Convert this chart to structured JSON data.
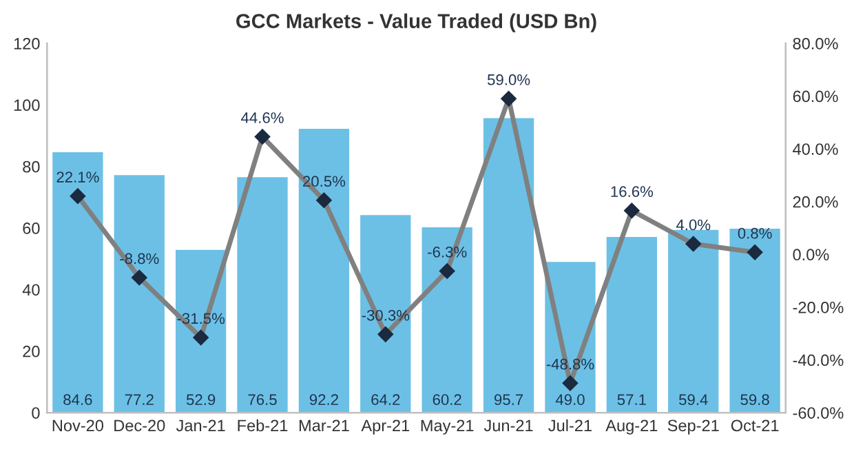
{
  "chart_data": {
    "type": "bar",
    "title": "GCC Markets - Value Traded (USD Bn)",
    "categories": [
      "Nov-20",
      "Dec-20",
      "Jan-21",
      "Feb-21",
      "Mar-21",
      "Apr-21",
      "May-21",
      "Jun-21",
      "Jul-21",
      "Aug-21",
      "Sep-21",
      "Oct-21"
    ],
    "series": [
      {
        "color": "#6cc0e5",
        "values": [
          84.6,
          77.2,
          52.9,
          76.5,
          92.2,
          64.2,
          60.2,
          95.7,
          49.0,
          57.1,
          59.4,
          59.8
        ],
        "value_labels": [
          "84.6",
          "77.2",
          "52.9",
          "76.5",
          "92.2",
          "64.2",
          "60.2",
          "95.7",
          "49.0",
          "57.1",
          "59.4",
          "59.8"
        ]
      },
      {
        "type": "line",
        "axis": "y2",
        "color": "#808080",
        "marker": "diamond",
        "values": [
          22.1,
          -8.8,
          -31.5,
          44.6,
          20.5,
          -30.3,
          -6.3,
          59.0,
          -48.8,
          16.6,
          4.0,
          0.8
        ],
        "value_labels": [
          "22.1%",
          "-8.8%",
          "-31.5%",
          "44.6%",
          "20.5%",
          "-30.3%",
          "-6.3%",
          "59.0%",
          "-48.8%",
          "16.6%",
          "4.0%",
          "0.8%"
        ]
      }
    ],
    "ylim": [
      0,
      120
    ],
    "yticks": [
      0,
      20,
      40,
      60,
      80,
      100,
      120
    ],
    "y2lim": [
      -60,
      80
    ],
    "y2ticks": [
      {
        "value": -60,
        "label": "-60.0%"
      },
      {
        "value": -40,
        "label": "-40.0%"
      },
      {
        "value": -20,
        "label": "-20.0%"
      },
      {
        "value": 0,
        "label": "0.0%"
      },
      {
        "value": 20,
        "label": "20.0%"
      },
      {
        "value": 40,
        "label": "40.0%"
      },
      {
        "value": 60,
        "label": "60.0%"
      },
      {
        "value": 80,
        "label": "80.0%"
      }
    ],
    "grid": false,
    "legend": false
  }
}
